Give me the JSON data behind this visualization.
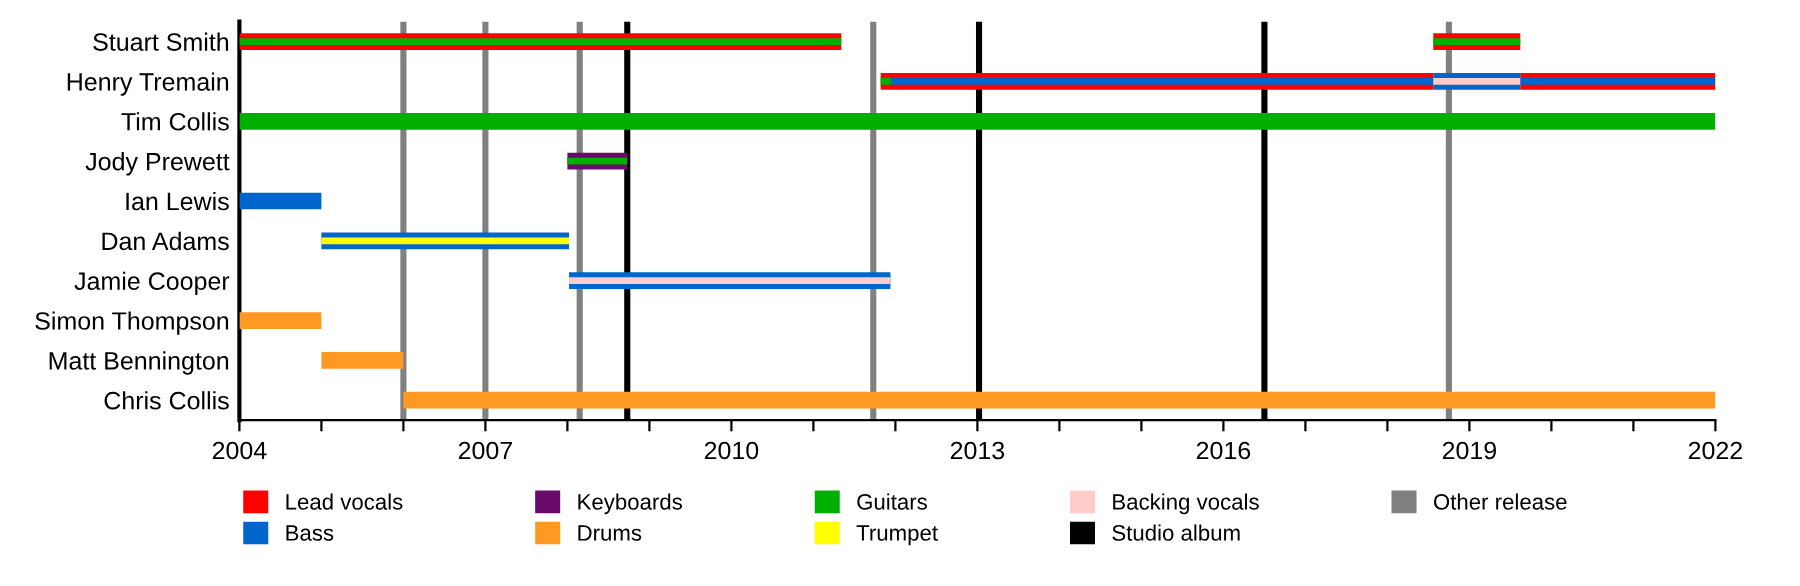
{
  "chart_data": {
    "type": "bar",
    "orientation": "horizontal",
    "legend": "bottom",
    "categories": [
      "Stuart Smith",
      "Henry Tremain",
      "Tim Collis",
      "Jody Prewett",
      "Ian Lewis",
      "Dan Adams",
      "Jamie Cooper",
      "Simon Thompson",
      "Matt Bennington",
      "Chris Collis"
    ],
    "series": [
      {
        "name": "Lead vocals",
        "color": "#ff0000",
        "values": [
          7.34,
          6.74,
          null,
          null,
          null,
          null,
          null,
          null,
          null,
          null
        ],
        "base": [
          2004,
          2011.82,
          null,
          null,
          null,
          null,
          null,
          null,
          null,
          null
        ]
      },
      {
        "color": "#ff0000",
        "values": [
          1.06,
          2.38,
          null,
          null,
          null,
          null,
          null,
          null,
          null,
          null
        ],
        "base": [
          2018.56,
          2019.62,
          null,
          null,
          null,
          null,
          null,
          null,
          null,
          null
        ]
      },
      {
        "name": "Bass",
        "color": "#0066cc",
        "values": [
          null,
          6.61,
          null,
          null,
          1.0,
          3.02,
          3.92,
          null,
          null,
          null
        ],
        "base": [
          null,
          2011.95,
          null,
          null,
          2004,
          2005.0,
          2008.02,
          null,
          null,
          null
        ]
      },
      {
        "color": "#0066cc",
        "values": [
          null,
          1.06,
          null,
          null,
          null,
          null,
          null,
          null,
          null,
          null
        ],
        "base": [
          null,
          2018.56,
          null,
          null,
          null,
          null,
          null,
          null,
          null,
          null
        ]
      },
      {
        "color": "#0066cc",
        "values": [
          null,
          2.38,
          null,
          null,
          null,
          null,
          null,
          null,
          null,
          null
        ],
        "base": [
          null,
          2019.62,
          null,
          null,
          null,
          null,
          null,
          null,
          null,
          null
        ]
      },
      {
        "name": "Keyboards",
        "color": "#6a0a6a",
        "values": [
          null,
          null,
          null,
          0.73,
          null,
          null,
          null,
          null,
          null,
          null
        ],
        "base": [
          null,
          null,
          null,
          2008.0,
          null,
          null,
          null,
          null,
          null,
          null
        ]
      },
      {
        "name": "Drums",
        "color": "#ff9922",
        "values": [
          null,
          null,
          null,
          null,
          null,
          null,
          null,
          1.0,
          1.0,
          16
        ],
        "base": [
          null,
          null,
          null,
          null,
          null,
          null,
          null,
          2004,
          2005.0,
          2006.0
        ]
      },
      {
        "name": "Guitars",
        "color": "#00b000",
        "values": [
          7.34,
          0.13,
          18,
          0.73,
          null,
          null,
          null,
          null,
          null,
          null
        ],
        "base": [
          2004,
          2011.82,
          2004,
          2008.0,
          null,
          null,
          null,
          null,
          null,
          null
        ]
      },
      {
        "color": "#00b000",
        "values": [
          1.06,
          null,
          null,
          null,
          null,
          null,
          null,
          null,
          null,
          null
        ],
        "base": [
          2018.56,
          null,
          null,
          null,
          null,
          null,
          null,
          null,
          null,
          null
        ]
      },
      {
        "name": "Trumpet",
        "color": "#ffff00",
        "values": [
          null,
          null,
          null,
          null,
          null,
          3.02,
          null,
          null,
          null,
          null
        ],
        "base": [
          null,
          null,
          null,
          null,
          null,
          2005.0,
          null,
          null,
          null,
          null
        ]
      },
      {
        "name": "Backing vocals",
        "color": "#ffcccc",
        "values": [
          null,
          1.06,
          null,
          null,
          null,
          null,
          3.92,
          null,
          null,
          null
        ],
        "base": [
          null,
          2018.56,
          null,
          null,
          null,
          null,
          2008.02,
          null,
          null,
          null
        ]
      }
    ],
    "ref_lines": [
      {
        "axis": "x",
        "value": 2008.73,
        "label": "Studio album",
        "color": "#000000"
      },
      {
        "axis": "x",
        "value": 2013.02,
        "color": "#000000"
      },
      {
        "axis": "x",
        "value": 2016.5,
        "color": "#000000"
      },
      {
        "axis": "x",
        "value": 2006.0,
        "label": "Other release",
        "color": "#808080"
      },
      {
        "axis": "x",
        "value": 2007.0,
        "color": "#808080"
      },
      {
        "axis": "x",
        "value": 2008.15,
        "color": "#808080"
      },
      {
        "axis": "x",
        "value": 2011.73,
        "color": "#808080"
      },
      {
        "axis": "x",
        "value": 2018.75,
        "color": "#808080"
      }
    ],
    "xlim": [
      2004,
      2022
    ],
    "xticks": [
      2004,
      {
        "value": 2005,
        "label": null
      },
      {
        "value": 2006,
        "label": null
      },
      2007,
      {
        "value": 2008,
        "label": null
      },
      {
        "value": 2009,
        "label": null
      },
      2010,
      {
        "value": 2011,
        "label": null
      },
      {
        "value": 2012,
        "label": null
      },
      2013,
      {
        "value": 2014,
        "label": null
      },
      {
        "value": 2015,
        "label": null
      },
      2016,
      {
        "value": 2017,
        "label": null
      },
      {
        "value": 2018,
        "label": null
      },
      2019,
      {
        "value": 2020,
        "label": null
      },
      {
        "value": 2021,
        "label": null
      },
      2022
    ]
  }
}
